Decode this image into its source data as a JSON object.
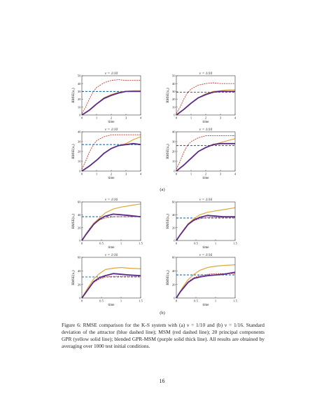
{
  "page_number": "16",
  "caption": {
    "text": "Figure 6: RMSE comparison for the K-S system with (a) ν = 1/10 and (b) ν = 1/16. Standard deviation of the attractor (blue dashed line); MSM (red dashed line); 20 principal components GPR (yellow solid line); blended GPR-MSM (purple solid thick line). All results are obtained by averaging over 1000 test initial conditions."
  },
  "subfigure_labels": [
    "(a)",
    "(b)"
  ],
  "colors": {
    "std": "#1f6fb4",
    "msm": "#c0392b",
    "gpr": "#e0a83a",
    "blend": "#5b2a86"
  },
  "chart_data": [
    {
      "type": "line",
      "title": "ν = 1/10",
      "xlabel": "time",
      "ylabel": "RMSE(u₁)",
      "xlim": [
        0,
        4
      ],
      "ylim": [
        0,
        50
      ],
      "xticks": [
        "0",
        "1",
        "2",
        "3",
        "4"
      ],
      "yticks": [
        "0",
        "10",
        "20",
        "30",
        "40",
        "50"
      ],
      "series": [
        {
          "x": [
            0,
            0.5,
            1,
            1.5,
            2,
            2.5,
            3,
            3.5,
            4
          ],
          "values": [
            30,
            30,
            30,
            30,
            30,
            30,
            30,
            30,
            30
          ]
        },
        {
          "x": [
            0,
            0.25,
            0.5,
            0.75,
            1,
            1.5,
            2,
            2.5,
            3,
            3.5,
            4
          ],
          "values": [
            2,
            10,
            20,
            29,
            35,
            41,
            44,
            45,
            44,
            44,
            44
          ]
        },
        {
          "x": [
            0,
            0.5,
            1,
            1.5,
            2,
            2.5,
            3,
            3.5,
            4
          ],
          "values": [
            0,
            6,
            14,
            22,
            26,
            29,
            30,
            31,
            31
          ]
        },
        {
          "x": [
            0,
            0.5,
            1,
            1.5,
            2,
            2.5,
            3,
            3.5,
            4
          ],
          "values": [
            0,
            6,
            14,
            21,
            25,
            28,
            30,
            30,
            30
          ]
        }
      ]
    },
    {
      "type": "line",
      "title": "ν = 1/10",
      "xlabel": "time",
      "ylabel": "RMSE(u₂)",
      "xlim": [
        0,
        4
      ],
      "ylim": [
        0,
        50
      ],
      "xticks": [
        "0",
        "1",
        "2",
        "3",
        "4"
      ],
      "yticks": [
        "0",
        "10",
        "20",
        "30",
        "40",
        "50"
      ],
      "series": [
        {
          "x": [
            0,
            0.5,
            1,
            1.5,
            2,
            2.5,
            3,
            3.5,
            4
          ],
          "values": [
            29,
            29,
            29,
            29,
            29,
            29,
            29,
            29,
            29
          ]
        },
        {
          "x": [
            0,
            0.25,
            0.5,
            0.75,
            1,
            1.5,
            2,
            2.5,
            3,
            3.5,
            4
          ],
          "values": [
            2,
            10,
            20,
            28,
            33,
            38,
            40,
            41,
            40,
            40,
            40
          ]
        },
        {
          "x": [
            0,
            0.5,
            1,
            1.5,
            2,
            2.5,
            3,
            3.5,
            4
          ],
          "values": [
            0,
            7,
            15,
            22,
            27,
            30,
            31,
            32,
            32
          ]
        },
        {
          "x": [
            0,
            0.5,
            1,
            1.5,
            2,
            2.5,
            3,
            3.5,
            4
          ],
          "values": [
            0,
            7,
            15,
            22,
            26,
            29,
            30,
            30,
            30
          ]
        }
      ]
    },
    {
      "type": "line",
      "title": "ν = 1/10",
      "xlabel": "time",
      "ylabel": "RMSE(u₃)",
      "xlim": [
        0,
        4
      ],
      "ylim": [
        0,
        40
      ],
      "xticks": [
        "0",
        "1",
        "2",
        "3",
        "4"
      ],
      "yticks": [
        "0",
        "10",
        "20",
        "30",
        "40"
      ],
      "series": [
        {
          "x": [
            0,
            0.5,
            1,
            1.5,
            2,
            2.5,
            3,
            3.5,
            4
          ],
          "values": [
            27,
            27,
            27,
            27,
            27,
            27,
            27,
            27,
            27
          ]
        },
        {
          "x": [
            0,
            0.25,
            0.5,
            0.75,
            1,
            1.5,
            2,
            2.5,
            3,
            3.5,
            4
          ],
          "values": [
            2,
            10,
            19,
            26,
            31,
            35,
            37,
            37,
            37,
            37,
            37
          ]
        },
        {
          "x": [
            0,
            0.5,
            1,
            1.5,
            2,
            2.5,
            3,
            3.5,
            4
          ],
          "values": [
            0,
            5,
            11,
            18,
            23,
            26,
            28,
            32,
            35
          ]
        },
        {
          "x": [
            0,
            0.5,
            1,
            1.5,
            2,
            2.5,
            3,
            3.5,
            4
          ],
          "values": [
            0,
            5,
            11,
            18,
            23,
            26,
            27,
            28,
            27
          ]
        }
      ]
    },
    {
      "type": "line",
      "title": "ν = 1/10",
      "xlabel": "time",
      "ylabel": "RMSE(u₄)",
      "xlim": [
        0,
        4
      ],
      "ylim": [
        0,
        40
      ],
      "xticks": [
        "0",
        "1",
        "2",
        "3",
        "4"
      ],
      "yticks": [
        "0",
        "10",
        "20",
        "30",
        "40"
      ],
      "series": [
        {
          "x": [
            0,
            0.5,
            1,
            1.5,
            2,
            2.5,
            3,
            3.5,
            4
          ],
          "values": [
            26,
            26,
            26,
            26,
            26,
            26,
            26,
            26,
            26
          ]
        },
        {
          "x": [
            0,
            0.25,
            0.5,
            0.75,
            1,
            1.5,
            2,
            2.5,
            3,
            3.5,
            4
          ],
          "values": [
            2,
            10,
            19,
            26,
            30,
            34,
            36,
            36,
            36,
            36,
            36
          ]
        },
        {
          "x": [
            0,
            0.5,
            1,
            1.5,
            2,
            2.5,
            3,
            3.5,
            4
          ],
          "values": [
            0,
            6,
            13,
            20,
            24,
            27,
            29,
            31,
            33
          ]
        },
        {
          "x": [
            0,
            0.5,
            1,
            1.5,
            2,
            2.5,
            3,
            3.5,
            4
          ],
          "values": [
            0,
            6,
            13,
            20,
            24,
            27,
            28,
            28,
            28
          ]
        }
      ]
    },
    {
      "type": "line",
      "title": "ν = 1/16",
      "xlabel": "time",
      "ylabel": "RMSE(u₁)",
      "xlim": [
        0,
        1.5
      ],
      "ylim": [
        0,
        60
      ],
      "xticks": [
        "0",
        "0.5",
        "1",
        "1.5"
      ],
      "yticks": [
        "0",
        "20",
        "40",
        "60"
      ],
      "series": [
        {
          "x": [
            0,
            0.25,
            0.5,
            0.75,
            1,
            1.25,
            1.5
          ],
          "values": [
            37,
            37,
            37,
            37,
            37,
            37,
            37
          ]
        },
        {
          "x": [
            0,
            0.1,
            0.2,
            0.3,
            0.45,
            0.6,
            0.8,
            1,
            1.2,
            1.5
          ],
          "values": [
            0,
            10,
            19,
            26,
            32,
            35,
            37,
            37,
            37,
            37
          ]
        },
        {
          "x": [
            0,
            0.1,
            0.2,
            0.3,
            0.45,
            0.6,
            0.8,
            1,
            1.2,
            1.5
          ],
          "values": [
            0,
            9,
            18,
            27,
            35,
            43,
            49,
            52,
            54,
            57
          ]
        },
        {
          "x": [
            0,
            0.1,
            0.2,
            0.3,
            0.45,
            0.6,
            0.8,
            1,
            1.2,
            1.5
          ],
          "values": [
            0,
            9,
            17,
            25,
            33,
            38,
            41,
            40,
            39,
            37
          ]
        }
      ]
    },
    {
      "type": "line",
      "title": "ν = 1/16",
      "xlabel": "time",
      "ylabel": "RMSE(u₂)",
      "xlim": [
        0,
        1.5
      ],
      "ylim": [
        0,
        60
      ],
      "xticks": [
        "0",
        "0.5",
        "1",
        "1.5"
      ],
      "yticks": [
        "0",
        "20",
        "40",
        "60"
      ],
      "series": [
        {
          "x": [
            0,
            0.25,
            0.5,
            0.75,
            1,
            1.25,
            1.5
          ],
          "values": [
            35,
            35,
            35,
            35,
            35,
            35,
            35
          ]
        },
        {
          "x": [
            0,
            0.1,
            0.2,
            0.3,
            0.45,
            0.6,
            0.8,
            1,
            1.2,
            1.5
          ],
          "values": [
            0,
            9,
            18,
            25,
            31,
            34,
            36,
            36,
            36,
            36
          ]
        },
        {
          "x": [
            0,
            0.1,
            0.2,
            0.3,
            0.45,
            0.6,
            0.8,
            1,
            1.2,
            1.5
          ],
          "values": [
            0,
            9,
            18,
            26,
            34,
            40,
            44,
            46,
            48,
            51
          ]
        },
        {
          "x": [
            0,
            0.1,
            0.2,
            0.3,
            0.45,
            0.6,
            0.8,
            1,
            1.2,
            1.5
          ],
          "values": [
            0,
            9,
            17,
            25,
            32,
            36,
            39,
            38,
            37,
            37
          ]
        }
      ]
    },
    {
      "type": "line",
      "title": "ν = 1/16",
      "xlabel": "time",
      "ylabel": "RMSE(u₃)",
      "xlim": [
        0,
        1.5
      ],
      "ylim": [
        0,
        60
      ],
      "xticks": [
        "0",
        "0.5",
        "1",
        "1.5"
      ],
      "yticks": [
        "0",
        "20",
        "40",
        "60"
      ],
      "series": [
        {
          "x": [
            0,
            0.25,
            0.5,
            0.75,
            1,
            1.25,
            1.5
          ],
          "values": [
            31,
            31,
            31,
            31,
            31,
            31,
            31
          ]
        },
        {
          "x": [
            0,
            0.1,
            0.2,
            0.3,
            0.45,
            0.6,
            0.8,
            1,
            1.2,
            1.5
          ],
          "values": [
            0,
            8,
            16,
            23,
            28,
            31,
            32,
            32,
            32,
            32
          ]
        },
        {
          "x": [
            0,
            0.1,
            0.2,
            0.3,
            0.45,
            0.6,
            0.8,
            1,
            1.2,
            1.5
          ],
          "values": [
            0,
            10,
            19,
            28,
            36,
            42,
            44,
            45,
            44,
            43
          ]
        },
        {
          "x": [
            0,
            0.1,
            0.2,
            0.3,
            0.45,
            0.6,
            0.8,
            1,
            1.2,
            1.5
          ],
          "values": [
            0,
            8,
            16,
            24,
            30,
            33,
            36,
            35,
            34,
            33
          ]
        }
      ]
    },
    {
      "type": "line",
      "title": "ν = 1/16",
      "xlabel": "time",
      "ylabel": "RMSE(u₄)",
      "xlim": [
        0,
        1.5
      ],
      "ylim": [
        0,
        60
      ],
      "xticks": [
        "0",
        "0.5",
        "1",
        "1.5"
      ],
      "yticks": [
        "0",
        "20",
        "40",
        "60"
      ],
      "series": [
        {
          "x": [
            0,
            0.25,
            0.5,
            0.75,
            1,
            1.25,
            1.5
          ],
          "values": [
            34,
            34,
            34,
            34,
            34,
            34,
            34
          ]
        },
        {
          "x": [
            0,
            0.1,
            0.2,
            0.3,
            0.45,
            0.6,
            0.8,
            1,
            1.2,
            1.5
          ],
          "values": [
            0,
            9,
            17,
            24,
            30,
            33,
            35,
            36,
            36,
            36
          ]
        },
        {
          "x": [
            0,
            0.1,
            0.2,
            0.3,
            0.45,
            0.6,
            0.8,
            1,
            1.2,
            1.5
          ],
          "values": [
            0,
            10,
            19,
            27,
            35,
            41,
            45,
            47,
            48,
            49
          ]
        },
        {
          "x": [
            0,
            0.1,
            0.2,
            0.3,
            0.45,
            0.6,
            0.8,
            1,
            1.2,
            1.5
          ],
          "values": [
            0,
            9,
            16,
            23,
            29,
            31,
            33,
            34,
            35,
            38
          ]
        }
      ]
    }
  ]
}
